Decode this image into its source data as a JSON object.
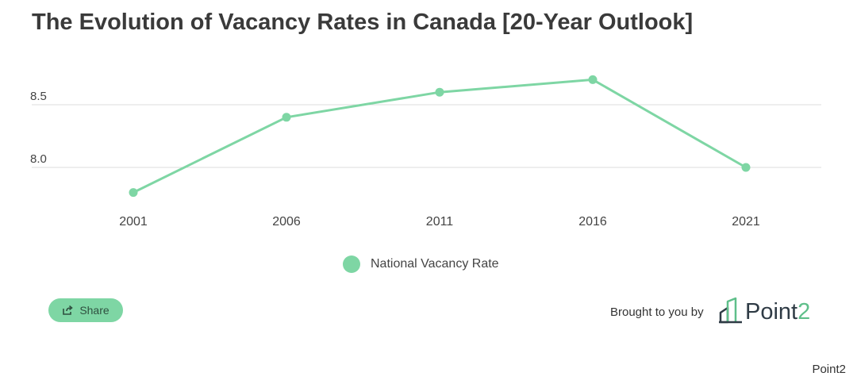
{
  "title": "The Evolution of Vacancy Rates in Canada [20-Year Outlook]",
  "chart_data": {
    "type": "line",
    "x": [
      "2001",
      "2006",
      "2011",
      "2016",
      "2021"
    ],
    "series": [
      {
        "name": "National Vacancy Rate",
        "values": [
          7.8,
          8.4,
          8.6,
          8.7,
          8.0
        ],
        "color": "#7ed6a4"
      }
    ],
    "y_ticks": [
      "8.0",
      "8.5"
    ],
    "ylim": [
      7.5,
      9.0
    ],
    "grid": true,
    "legend_position": "bottom-center"
  },
  "share": {
    "label": "Share",
    "icon": "share-icon"
  },
  "brand": {
    "prefix": "Brought to you by",
    "name_main": "Point",
    "name_suffix": "2",
    "icon": "point2-logo-icon"
  },
  "credit": "Point2"
}
